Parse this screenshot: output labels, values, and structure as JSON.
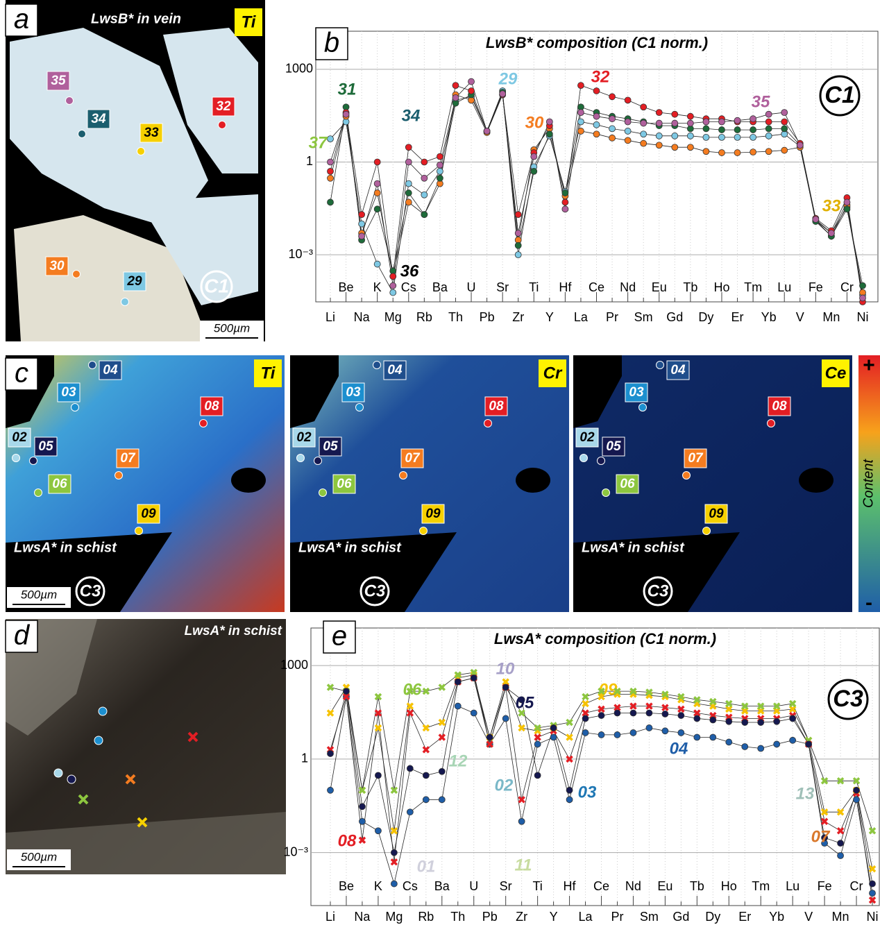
{
  "panel_a": {
    "letter": "a",
    "caption": "LwsB* in vein",
    "element": "Ti",
    "zone": "C1",
    "scale": "500µm",
    "samples": [
      {
        "label": "35",
        "color": "#b0609c"
      },
      {
        "label": "34",
        "color": "#1b5e6e"
      },
      {
        "label": "32",
        "color": "#e31e24"
      },
      {
        "label": "33",
        "color": "#f6d000"
      },
      {
        "label": "30",
        "color": "#f47c20"
      },
      {
        "label": "29",
        "color": "#7ec8e3"
      }
    ]
  },
  "panel_c": {
    "letter": "c",
    "caption": "LwsA* in schist",
    "zone": "C3",
    "scale": "500µm",
    "elements": [
      "Ti",
      "Cr",
      "Ce"
    ],
    "samples": [
      {
        "label": "04",
        "color": "#1f4e8c"
      },
      {
        "label": "03",
        "color": "#1c8fcf"
      },
      {
        "label": "08",
        "color": "#e31e24"
      },
      {
        "label": "02",
        "color": "#a8d8ea"
      },
      {
        "label": "05",
        "color": "#15184f"
      },
      {
        "label": "07",
        "color": "#f47c20"
      },
      {
        "label": "06",
        "color": "#8dc63f"
      },
      {
        "label": "09",
        "color": "#f6d000"
      }
    ],
    "colorbar": {
      "title": "Content",
      "high": "+",
      "low": "-"
    }
  },
  "panel_d": {
    "letter": "d",
    "caption": "LwsA* in schist",
    "scale": "500µm"
  },
  "chart_data": [
    {
      "type": "line",
      "letter": "b",
      "title": "LwsB* composition (C1 norm.)",
      "zone": "C1",
      "log_scale": true,
      "grid": true,
      "categories": [
        "Li",
        "Be",
        "Na",
        "K",
        "Mg",
        "Cs",
        "Rb",
        "Ba",
        "Th",
        "U",
        "Pb",
        "Sr",
        "Zr",
        "Ti",
        "Y",
        "Hf",
        "La",
        "Ce",
        "Pr",
        "Nd",
        "Sm",
        "Eu",
        "Gd",
        "Tb",
        "Dy",
        "Ho",
        "Er",
        "Tm",
        "Yb",
        "Lu",
        "V",
        "Fe",
        "Mn",
        "Cr",
        "Ni"
      ],
      "ylim": [
        3e-05,
        17000
      ],
      "yticks": [
        1000,
        1,
        {
          "value": 0.001,
          "label": "10⁻³"
        }
      ],
      "series": [
        {
          "name": "29",
          "color": "#7ec8e3",
          "marker": "circle",
          "values": [
            5.6,
            20,
            0.01,
            0.0005,
            6e-05,
            0.2,
            0.087,
            0.5,
            100,
            130,
            10,
            200,
            0.001,
            0.7,
            7,
            0.11,
            20,
            16,
            12,
            10,
            8,
            7,
            7,
            7,
            6.3,
            6.3,
            6.3,
            6.3,
            7,
            8,
            3.2,
            0.013,
            0.005,
            0.035,
            5e-05
          ]
        },
        {
          "name": "30",
          "color": "#f47c20",
          "marker": "circle",
          "values": [
            0.3,
            30,
            0.005,
            0.1,
            0.0002,
            0.05,
            0.02,
            0.2,
            150,
            100,
            9,
            150,
            0.003,
            2.5,
            12,
            0.08,
            10,
            8,
            6,
            5,
            4,
            3.5,
            3,
            3,
            2.2,
            2,
            2,
            2.1,
            2.2,
            2.4,
            3,
            0.013,
            0.004,
            0.04,
            6e-05
          ]
        },
        {
          "name": "31",
          "color": "#1e6b3a",
          "marker": "circle",
          "values": [
            0.05,
            60,
            0.003,
            0.03,
            0.0003,
            0.1,
            0.02,
            0.3,
            80,
            150,
            10,
            180,
            0.002,
            0.5,
            8,
            0.1,
            60,
            40,
            30,
            25,
            20,
            15,
            15,
            12,
            12,
            11,
            11,
            11,
            12,
            12,
            3.5,
            0.012,
            0.004,
            0.03,
            0.0001
          ]
        },
        {
          "name": "32",
          "color": "#e31e24",
          "marker": "circle",
          "values": [
            0.5,
            40,
            0.02,
            1,
            0.0002,
            3,
            1,
            1.5,
            300,
            200,
            10,
            150,
            0.02,
            2,
            15,
            0.05,
            300,
            200,
            130,
            100,
            60,
            40,
            35,
            30,
            25,
            25,
            20,
            20,
            20,
            20,
            4,
            0.015,
            0.006,
            0.07,
            3e-05
          ]
        },
        {
          "name": "35",
          "color": "#b0609c",
          "marker": "circle",
          "values": [
            1,
            35,
            0.004,
            0.2,
            0.0001,
            1,
            0.3,
            0.8,
            120,
            400,
            10,
            160,
            0.005,
            1.5,
            20,
            0.03,
            40,
            30,
            25,
            20,
            18,
            18,
            18,
            18,
            20,
            20,
            22,
            25,
            35,
            40,
            3.5,
            0.014,
            0.005,
            0.05,
            4e-05
          ]
        }
      ],
      "annotations": [
        {
          "text": "37",
          "color": "#8dc63f"
        },
        {
          "text": "34",
          "color": "#1b5e6e"
        },
        {
          "text": "33",
          "color": "#e0b000"
        },
        {
          "text": "36",
          "color": "#000000"
        }
      ]
    },
    {
      "type": "line",
      "letter": "e",
      "title": "LwsA* composition (C1 norm.)",
      "zone": "C3",
      "log_scale": true,
      "grid": true,
      "categories": [
        "Li",
        "Be",
        "Na",
        "K",
        "Mg",
        "Cs",
        "Rb",
        "Ba",
        "Th",
        "U",
        "Pb",
        "Sr",
        "Zr",
        "Ti",
        "Y",
        "Hf",
        "La",
        "Ce",
        "Pr",
        "Nd",
        "Sm",
        "Eu",
        "Gd",
        "Tb",
        "Dy",
        "Ho",
        "Er",
        "Tm",
        "Yb",
        "Lu",
        "V",
        "Fe",
        "Mn",
        "Cr",
        "Ni"
      ],
      "ylim": [
        2e-05,
        16000
      ],
      "yticks": [
        1000,
        1,
        {
          "value": 0.001,
          "label": "10⁻³"
        }
      ],
      "series": [
        {
          "name": "04",
          "color": "#1f5ea8",
          "marker": "circle",
          "values": [
            0.1,
            100,
            0.01,
            0.005,
            0.0001,
            0.02,
            0.05,
            0.05,
            50,
            30,
            3,
            20,
            0.01,
            3,
            5,
            0.05,
            7,
            6,
            6,
            7,
            10,
            8,
            7,
            5,
            5,
            3.5,
            2.5,
            2.2,
            3,
            4,
            3,
            0.002,
            0.0008,
            0.05,
            5e-05
          ]
        },
        {
          "name": "09",
          "color": "#f6c200",
          "marker": "cross",
          "values": [
            30,
            200,
            0.1,
            10,
            0.005,
            50,
            10,
            15,
            400,
            500,
            5,
            300,
            10,
            8,
            10,
            5,
            60,
            100,
            120,
            120,
            110,
            100,
            80,
            60,
            50,
            40,
            35,
            35,
            35,
            40,
            4,
            0.02,
            0.02,
            0.1,
            0.0003
          ]
        },
        {
          "name": "06",
          "color": "#8dc63f",
          "marker": "cross",
          "values": [
            200,
            150,
            0.1,
            100,
            0.1,
            150,
            150,
            200,
            500,
            600,
            3,
            200,
            30,
            10,
            12,
            15,
            100,
            150,
            150,
            150,
            140,
            120,
            100,
            80,
            70,
            60,
            50,
            50,
            50,
            60,
            4,
            0.2,
            0.2,
            0.2,
            0.005
          ]
        },
        {
          "name": "08",
          "color": "#e31e24",
          "marker": "cross",
          "values": [
            2,
            100,
            0.0025,
            30,
            0.0005,
            30,
            2,
            5,
            300,
            400,
            3,
            200,
            0.05,
            5,
            8,
            1,
            30,
            40,
            45,
            50,
            50,
            45,
            40,
            30,
            25,
            22,
            20,
            20,
            20,
            25,
            3,
            0.01,
            0.005,
            0.08,
            3e-05
          ]
        },
        {
          "name": "05",
          "color": "#15184f",
          "marker": "circle",
          "values": [
            1.5,
            150,
            0.03,
            0.3,
            0.001,
            0.5,
            0.3,
            0.4,
            300,
            400,
            5,
            200,
            80,
            0.3,
            10,
            0.1,
            20,
            25,
            30,
            30,
            30,
            28,
            25,
            20,
            18,
            16,
            15,
            15,
            16,
            20,
            3,
            0.003,
            0.002,
            0.1,
            0.0001
          ]
        }
      ],
      "annotations": [
        {
          "text": "10",
          "color": "#a7a0c8"
        },
        {
          "text": "12",
          "color": "#a8d5b5"
        },
        {
          "text": "01",
          "color": "#d0d0dc"
        },
        {
          "text": "11",
          "color": "#c8dca0"
        },
        {
          "text": "13",
          "color": "#a0c0b8"
        },
        {
          "text": "07",
          "color": "#d9782c"
        },
        {
          "text": "03",
          "color": "#1f77b4"
        },
        {
          "text": "02",
          "color": "#7ab8c8"
        }
      ]
    }
  ]
}
